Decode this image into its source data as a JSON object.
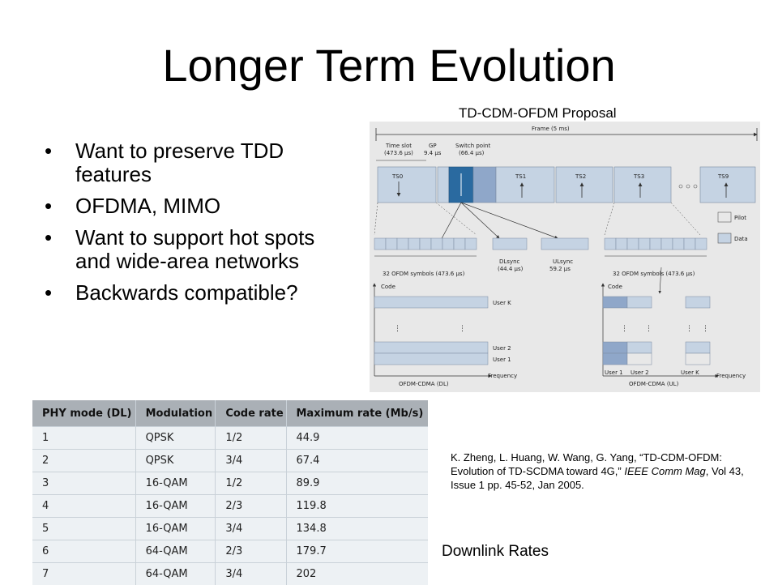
{
  "title": "Longer Term Evolution",
  "bullets": [
    "Want to preserve TDD features",
    "OFDMA, MIMO",
    "Want to support hot spots and wide-area networks",
    "Backwards compatible?"
  ],
  "figure": {
    "caption": "TD-CDM-OFDM Proposal",
    "frame_label": "Frame (5 ms)",
    "time_slot_label": "Time slot",
    "time_slot_value": "(473.6 µs)",
    "gp_label": "GP",
    "gp_value": "9.4 µs",
    "switch_label": "Switch point",
    "switch_value": "(66.4 µs)",
    "slots": [
      "TS0",
      "TS1",
      "TS2",
      "TS3",
      "TS9"
    ],
    "legend_pilot": "Pilot",
    "legend_data": "Data",
    "ofdm_left": "32 OFDM symbols (473.6 µs)",
    "ofdm_right": "32 OFDM symbols (473.6 µs)",
    "dlsync": "DLsync",
    "dlsync_value": "(44.4 µs)",
    "ulsync": "ULsync",
    "ulsync_value": "59.2 µs",
    "code_label": "Code",
    "user_k": "User K",
    "user_2": "User 2",
    "user_1": "User 1",
    "frequency": "Frequency",
    "dl_label": "OFDM-CDMA (DL)",
    "ul_label": "OFDM-CDMA (UL)",
    "ul_user1": "User 1",
    "ul_user2": "User 2",
    "ul_userk": "User K"
  },
  "reference": {
    "authors": "K. Zheng, L. Huang, W. Wang, G. Yang, “TD-CDM-OFDM: Evolution of TD-SCDMA toward 4G,” ",
    "journal": "IEEE Comm Mag",
    "details": ", Vol 43, Issue 1 pp. 45-52, Jan 2005."
  },
  "downlink_caption": "Downlink Rates",
  "table": {
    "headers": [
      "PHY mode (DL)",
      "Modulation",
      "Code rate",
      "Maximum rate (Mb/s)"
    ],
    "rows": [
      [
        "1",
        "QPSK",
        "1/2",
        "44.9"
      ],
      [
        "2",
        "QPSK",
        "3/4",
        "67.4"
      ],
      [
        "3",
        "16-QAM",
        "1/2",
        "89.9"
      ],
      [
        "4",
        "16-QAM",
        "2/3",
        "119.8"
      ],
      [
        "5",
        "16-QAM",
        "3/4",
        "134.8"
      ],
      [
        "6",
        "64-QAM",
        "2/3",
        "179.7"
      ],
      [
        "7",
        "64-QAM",
        "3/4",
        "202"
      ]
    ]
  },
  "colors": {
    "slot_fill": "#c5d3e3",
    "dark_slot": "#2a6aa0",
    "mid_slot": "#8fa7c9",
    "table_header": "#aab0b6",
    "table_body": "#edf1f4"
  }
}
